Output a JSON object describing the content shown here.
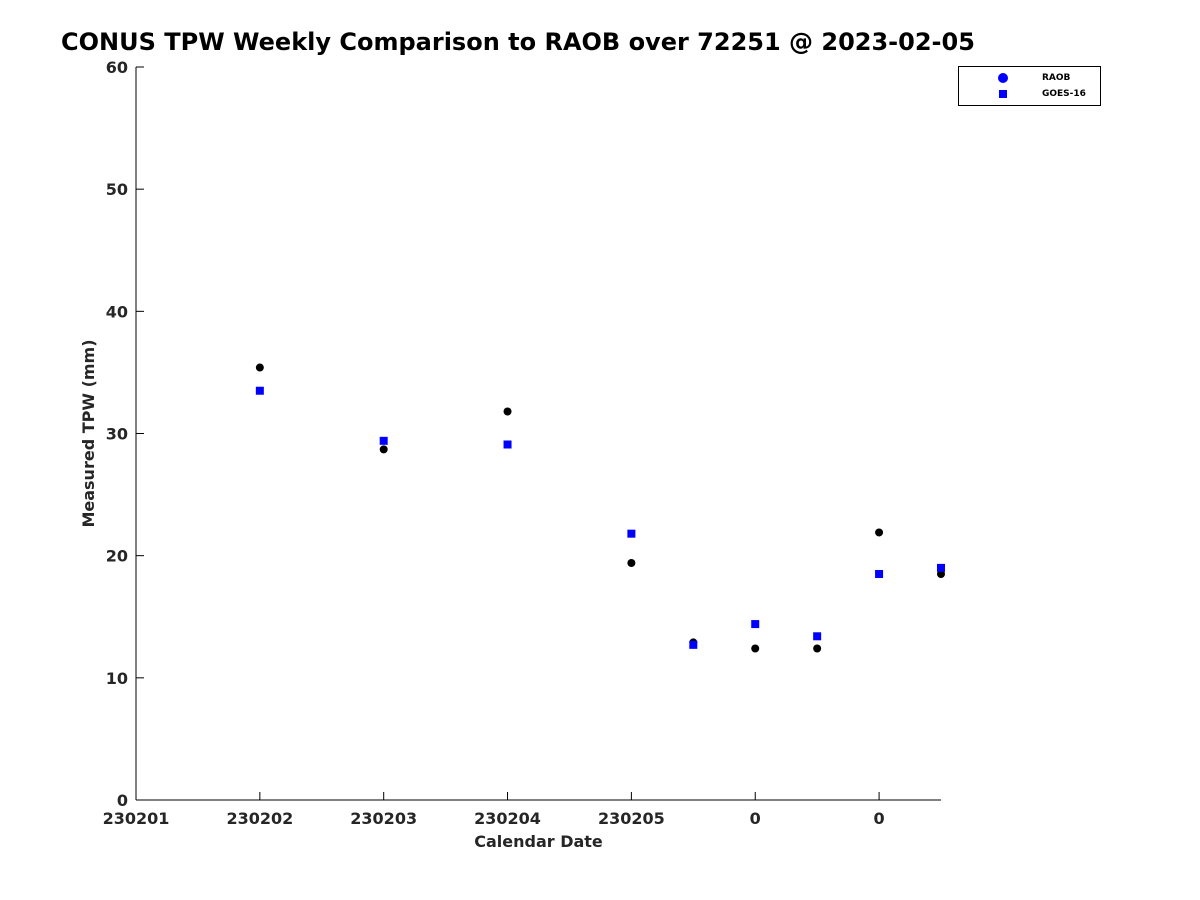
{
  "chart_data": {
    "type": "scatter",
    "title": "CONUS TPW Weekly Comparison to RAOB over 72251 @ 2023-02-05",
    "xlabel": "Calendar Date",
    "ylabel": "Measured TPW (mm)",
    "ylim": [
      0,
      60
    ],
    "yticks": [
      0,
      10,
      20,
      30,
      40,
      50,
      60
    ],
    "x_tick_labels": [
      "230201",
      "230202",
      "230203",
      "230204",
      "230205",
      "0",
      "0"
    ],
    "x_tick_label_positions": [
      0,
      1,
      2,
      3,
      4,
      5,
      6
    ],
    "xlim": [
      0,
      6.5
    ],
    "grid": false,
    "legend_position": "top-right",
    "series": [
      {
        "name": "RAOB",
        "marker": "circle",
        "color": "#000000",
        "legend_color": "#0000ff",
        "x": [
          1,
          2,
          3,
          4,
          4.5,
          5,
          5.5,
          6,
          6.5
        ],
        "y": [
          35.4,
          28.7,
          31.8,
          19.4,
          12.9,
          12.4,
          12.4,
          21.9,
          18.5
        ]
      },
      {
        "name": "GOES-16",
        "marker": "square",
        "color": "#0000ff",
        "legend_color": "#0000ff",
        "x": [
          1,
          2,
          3,
          4,
          4.5,
          5,
          5.5,
          6,
          6.5
        ],
        "y": [
          33.5,
          29.4,
          29.1,
          21.8,
          12.7,
          14.4,
          13.4,
          18.5,
          19.0
        ]
      }
    ]
  }
}
